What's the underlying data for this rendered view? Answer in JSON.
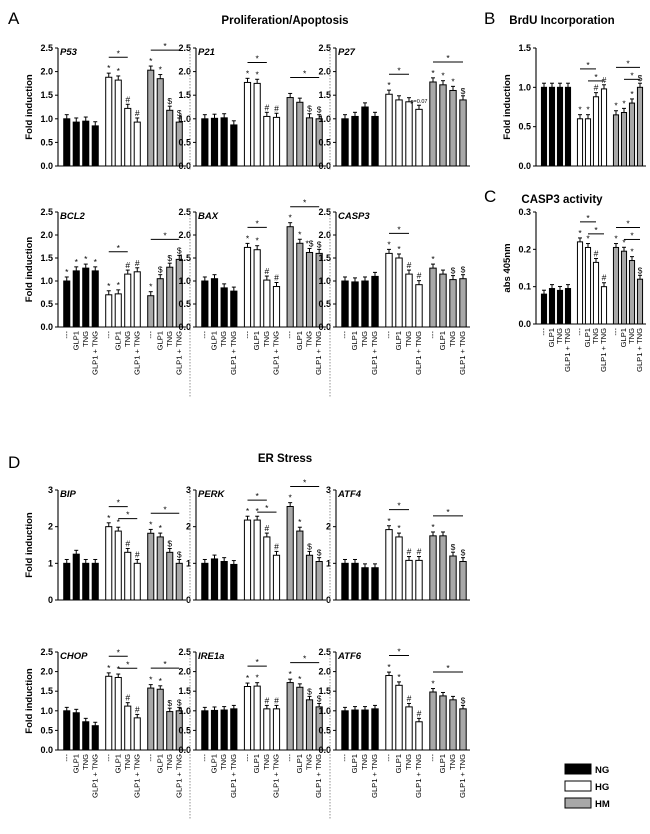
{
  "panel_labels": [
    "A",
    "B",
    "C",
    "D"
  ],
  "titles": {
    "A": "Proliferation/Apoptosis",
    "B": "BrdU Incorporation",
    "C": "CASP3 activity",
    "D": "ER Stress"
  },
  "y_labels": {
    "fold": "Fold induction",
    "abs": "abs 405nm"
  },
  "x_labels": [
    "---",
    "GLP1",
    "TNG",
    "GLP1 + TNG"
  ],
  "legend": [
    {
      "label": "NG",
      "color": "#000000"
    },
    {
      "label": "HG",
      "color": "#ffffff"
    },
    {
      "label": "HM",
      "color": "#a8a8a8"
    }
  ],
  "chart_data": [
    {
      "type": "bar",
      "id": "p53",
      "gene": "P53",
      "ylim": [
        0,
        2.5
      ],
      "yticks": [
        "0.0",
        "0.5",
        "1.0",
        "1.5",
        "2.0",
        "2.5"
      ],
      "series": [
        {
          "name": "NG",
          "values": [
            1.0,
            0.93,
            0.95,
            0.85
          ]
        },
        {
          "name": "HG",
          "values": [
            1.88,
            1.82,
            1.22,
            0.93
          ]
        },
        {
          "name": "HM",
          "values": [
            2.03,
            1.85,
            1.18,
            0.93
          ]
        }
      ],
      "marks": [
        [
          "*",
          "*",
          "#",
          "#"
        ],
        [
          "*",
          "*",
          "$",
          "$"
        ]
      ],
      "bracket_labels": [
        "*",
        "*"
      ]
    },
    {
      "type": "bar",
      "id": "p21",
      "gene": "P21",
      "ylim": [
        0,
        2.5
      ],
      "yticks": [
        "0.0",
        "0.5",
        "1.0",
        "1.5",
        "2.0",
        "2.5"
      ],
      "series": [
        {
          "name": "NG",
          "values": [
            1.0,
            1.01,
            1.02,
            0.87
          ]
        },
        {
          "name": "HG",
          "values": [
            1.77,
            1.75,
            1.05,
            1.03
          ]
        },
        {
          "name": "HM",
          "values": [
            1.45,
            1.35,
            1.02,
            1.0
          ]
        }
      ],
      "marks": [
        [
          "*",
          "*",
          "#",
          "#"
        ],
        [
          "",
          "",
          "$",
          "$"
        ]
      ],
      "bracket_labels": [
        "*",
        "*"
      ]
    },
    {
      "type": "bar",
      "id": "p27",
      "gene": "P27",
      "ylim": [
        0,
        2.5
      ],
      "yticks": [
        "0.0",
        "0.5",
        "1.0",
        "1.5",
        "2.0",
        "2.5"
      ],
      "series": [
        {
          "name": "NG",
          "values": [
            1.0,
            1.05,
            1.25,
            1.05
          ]
        },
        {
          "name": "HG",
          "values": [
            1.52,
            1.4,
            1.36,
            1.2
          ]
        },
        {
          "name": "HM",
          "values": [
            1.78,
            1.72,
            1.6,
            1.4
          ]
        }
      ],
      "marks": [
        [
          "*",
          "",
          "",
          "p=0.07"
        ],
        [
          "*",
          "*",
          "*",
          "$"
        ]
      ],
      "bracket_labels": [
        "*",
        "*"
      ]
    },
    {
      "type": "bar",
      "id": "bcl2",
      "gene": "BCL2",
      "ylim": [
        0,
        2.5
      ],
      "yticks": [
        "0.0",
        "0.5",
        "1.0",
        "1.5",
        "2.0",
        "2.5"
      ],
      "series": [
        {
          "name": "NG",
          "values": [
            1.0,
            1.22,
            1.28,
            1.22
          ]
        },
        {
          "name": "HG",
          "values": [
            0.7,
            0.72,
            1.15,
            1.2
          ]
        },
        {
          "name": "HM",
          "values": [
            0.68,
            1.05,
            1.3,
            1.47
          ]
        }
      ],
      "marks": [
        [
          "*",
          "*",
          "*",
          "*"
        ],
        [
          "*",
          "*",
          "#",
          "#"
        ],
        [
          "*",
          "$",
          "$",
          "$"
        ]
      ],
      "bracket_labels": [
        "*",
        "*"
      ]
    },
    {
      "type": "bar",
      "id": "bax",
      "gene": "BAX",
      "ylim": [
        0,
        2.5
      ],
      "yticks": [
        "0.0",
        "0.5",
        "1.0",
        "1.5",
        "2.0",
        "2.5"
      ],
      "series": [
        {
          "name": "NG",
          "values": [
            1.0,
            1.05,
            0.85,
            0.78
          ]
        },
        {
          "name": "HG",
          "values": [
            1.73,
            1.68,
            1.02,
            0.88
          ]
        },
        {
          "name": "HM",
          "values": [
            2.18,
            1.82,
            1.62,
            1.6
          ]
        }
      ],
      "marks": [
        [
          "*",
          "*",
          "#",
          "#"
        ],
        [
          "*",
          "*",
          "*$",
          "$"
        ]
      ],
      "bracket_labels": [
        "*",
        "*"
      ]
    },
    {
      "type": "bar",
      "id": "casp3",
      "gene": "CASP3",
      "ylim": [
        0,
        2.5
      ],
      "yticks": [
        "0.0",
        "0.5",
        "1.0",
        "1.5",
        "2.0",
        "2.5"
      ],
      "series": [
        {
          "name": "NG",
          "values": [
            1.0,
            0.98,
            1.0,
            1.1
          ]
        },
        {
          "name": "HG",
          "values": [
            1.6,
            1.5,
            1.15,
            0.92
          ]
        },
        {
          "name": "HM",
          "values": [
            1.28,
            1.15,
            1.03,
            1.05
          ]
        }
      ],
      "marks": [
        [
          "*",
          "*",
          "#",
          "#"
        ],
        [
          "*",
          "",
          "$",
          "$"
        ]
      ],
      "bracket_labels": [
        "*"
      ]
    },
    {
      "type": "bar",
      "id": "brdu",
      "gene": "",
      "ylim": [
        0,
        1.5
      ],
      "yticks": [
        "0.0",
        "0.5",
        "1.0",
        "1.5"
      ],
      "series": [
        {
          "name": "NG",
          "values": [
            1.0,
            1.0,
            1.0,
            1.0
          ]
        },
        {
          "name": "HG",
          "values": [
            0.6,
            0.6,
            0.88,
            0.98
          ]
        },
        {
          "name": "HM",
          "values": [
            0.65,
            0.68,
            0.8,
            1.0
          ]
        }
      ],
      "marks": [
        [
          "*",
          "*",
          "#",
          "#"
        ],
        [
          "*",
          "*",
          "*",
          "$"
        ]
      ],
      "bracket_labels": [
        "*",
        "*",
        "*",
        "*"
      ]
    },
    {
      "type": "bar",
      "id": "casp3act",
      "gene": "",
      "ylim": [
        0,
        0.3
      ],
      "yticks": [
        "0.0",
        "0.1",
        "0.2",
        "0.3"
      ],
      "series": [
        {
          "name": "NG",
          "values": [
            0.08,
            0.095,
            0.09,
            0.095
          ]
        },
        {
          "name": "HG",
          "values": [
            0.22,
            0.205,
            0.165,
            0.1
          ]
        },
        {
          "name": "HM",
          "values": [
            0.205,
            0.195,
            0.17,
            0.12
          ]
        }
      ],
      "marks": [
        [
          "*",
          "*",
          "#",
          "#"
        ],
        [
          "*",
          "*",
          "*",
          "$"
        ]
      ],
      "bracket_labels": [
        "*",
        "*",
        "*",
        "*"
      ]
    },
    {
      "type": "bar",
      "id": "bip",
      "gene": "BIP",
      "ylim": [
        0,
        3
      ],
      "yticks": [
        "0",
        "1",
        "2",
        "3"
      ],
      "series": [
        {
          "name": "NG",
          "values": [
            1.0,
            1.25,
            1.0,
            1.0
          ]
        },
        {
          "name": "HG",
          "values": [
            2.0,
            1.88,
            1.3,
            1.0
          ]
        },
        {
          "name": "HM",
          "values": [
            1.82,
            1.72,
            1.3,
            1.0
          ]
        }
      ],
      "marks": [
        [
          "*",
          "*",
          "#",
          "#"
        ],
        [
          "*",
          "*",
          "$",
          "$"
        ]
      ],
      "bracket_labels": [
        "*",
        "*",
        "*"
      ]
    },
    {
      "type": "bar",
      "id": "perk",
      "gene": "PERK",
      "ylim": [
        0,
        3
      ],
      "yticks": [
        "0",
        "1",
        "2",
        "3"
      ],
      "series": [
        {
          "name": "NG",
          "values": [
            1.0,
            1.12,
            1.05,
            0.97
          ]
        },
        {
          "name": "HG",
          "values": [
            2.18,
            2.18,
            1.72,
            1.22
          ]
        },
        {
          "name": "HM",
          "values": [
            2.55,
            1.88,
            1.22,
            1.05
          ]
        }
      ],
      "marks": [
        [
          "*",
          "*",
          "#",
          "#"
        ],
        [
          "*",
          "*",
          "$",
          "$"
        ]
      ],
      "bracket_labels": [
        "*",
        "*",
        "*"
      ]
    },
    {
      "type": "bar",
      "id": "atf4",
      "gene": "ATF4",
      "ylim": [
        0,
        3
      ],
      "yticks": [
        "0",
        "1",
        "2",
        "3"
      ],
      "series": [
        {
          "name": "NG",
          "values": [
            1.0,
            1.0,
            0.88,
            0.88
          ]
        },
        {
          "name": "HG",
          "values": [
            1.92,
            1.72,
            1.08,
            1.08
          ]
        },
        {
          "name": "HM",
          "values": [
            1.75,
            1.75,
            1.2,
            1.05
          ]
        }
      ],
      "marks": [
        [
          "*",
          "*",
          "#",
          "#"
        ],
        [
          "*",
          "",
          "$",
          "$"
        ]
      ],
      "bracket_labels": [
        "*",
        "*"
      ]
    },
    {
      "type": "bar",
      "id": "chop",
      "gene": "CHOP",
      "ylim": [
        0,
        2.5
      ],
      "yticks": [
        "0.0",
        "0.5",
        "1.0",
        "1.5",
        "2.0",
        "2.5"
      ],
      "series": [
        {
          "name": "NG",
          "values": [
            1.0,
            0.95,
            0.72,
            0.62
          ]
        },
        {
          "name": "HG",
          "values": [
            1.88,
            1.85,
            1.12,
            0.82
          ]
        },
        {
          "name": "HM",
          "values": [
            1.58,
            1.55,
            0.98,
            1.0
          ]
        }
      ],
      "marks": [
        [
          "*",
          "*",
          "#",
          "#"
        ],
        [
          "*",
          "*",
          "$",
          "$"
        ]
      ],
      "bracket_labels": [
        "*",
        "*",
        "*"
      ]
    },
    {
      "type": "bar",
      "id": "ire1a",
      "gene": "IRE1a",
      "ylim": [
        0,
        2.5
      ],
      "yticks": [
        "0.0",
        "0.5",
        "1.0",
        "1.5",
        "2.0",
        "2.5"
      ],
      "series": [
        {
          "name": "NG",
          "values": [
            1.0,
            1.01,
            1.02,
            1.05
          ]
        },
        {
          "name": "HG",
          "values": [
            1.62,
            1.63,
            1.05,
            1.05
          ]
        },
        {
          "name": "HM",
          "values": [
            1.72,
            1.6,
            1.28,
            1.1
          ]
        }
      ],
      "marks": [
        [
          "*",
          "*",
          "#",
          "#"
        ],
        [
          "*",
          "*",
          "$",
          "$"
        ]
      ],
      "bracket_labels": [
        "*",
        "*"
      ]
    },
    {
      "type": "bar",
      "id": "atf6",
      "gene": "ATF6",
      "ylim": [
        0,
        2.5
      ],
      "yticks": [
        "0.0",
        "0.5",
        "1.0",
        "1.5",
        "2.0",
        "2.5"
      ],
      "series": [
        {
          "name": "NG",
          "values": [
            1.0,
            1.02,
            1.02,
            1.05
          ]
        },
        {
          "name": "HG",
          "values": [
            1.9,
            1.65,
            1.1,
            0.72
          ]
        },
        {
          "name": "HM",
          "values": [
            1.48,
            1.38,
            1.28,
            1.05
          ]
        }
      ],
      "marks": [
        [
          "*",
          "*",
          "#",
          "#"
        ],
        [
          "*",
          "",
          "",
          "$"
        ]
      ],
      "bracket_labels": [
        "*",
        "*"
      ]
    }
  ]
}
